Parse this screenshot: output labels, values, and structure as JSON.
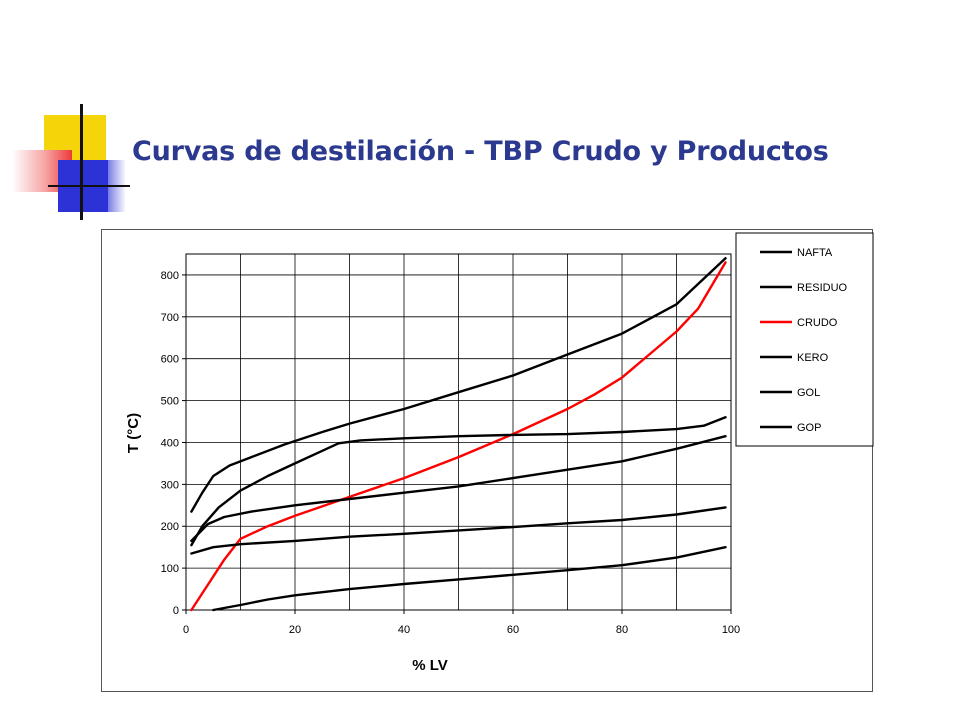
{
  "slide": {
    "title": "Curvas de destilación - TBP Crudo y Productos"
  },
  "chart_data": {
    "type": "line",
    "title": "",
    "xlabel": "% LV",
    "ylabel": "T (°C)",
    "xlim": [
      0,
      100
    ],
    "ylim": [
      0,
      850
    ],
    "x_ticks": [
      0,
      20,
      40,
      60,
      80,
      100
    ],
    "y_ticks": [
      0,
      100,
      200,
      300,
      400,
      500,
      600,
      700,
      800
    ],
    "grid": true,
    "legend_position": "top-right",
    "series": [
      {
        "name": "NAFTA",
        "color": "#000000",
        "points": [
          [
            5,
            0
          ],
          [
            10,
            12
          ],
          [
            15,
            25
          ],
          [
            20,
            35
          ],
          [
            30,
            50
          ],
          [
            40,
            62
          ],
          [
            50,
            73
          ],
          [
            60,
            84
          ],
          [
            70,
            95
          ],
          [
            80,
            107
          ],
          [
            90,
            125
          ],
          [
            99,
            150
          ]
        ]
      },
      {
        "name": "RESIDUO",
        "color": "#000000",
        "points": [
          [
            1,
            235
          ],
          [
            3,
            280
          ],
          [
            5,
            320
          ],
          [
            8,
            345
          ],
          [
            12,
            365
          ],
          [
            18,
            395
          ],
          [
            25,
            425
          ],
          [
            30,
            445
          ],
          [
            40,
            480
          ],
          [
            50,
            520
          ],
          [
            60,
            560
          ],
          [
            70,
            610
          ],
          [
            80,
            660
          ],
          [
            90,
            730
          ],
          [
            99,
            840
          ]
        ]
      },
      {
        "name": "CRUDO",
        "color": "#ff0000",
        "points": [
          [
            1,
            0
          ],
          [
            4,
            60
          ],
          [
            7,
            120
          ],
          [
            10,
            170
          ],
          [
            15,
            200
          ],
          [
            20,
            225
          ],
          [
            30,
            270
          ],
          [
            40,
            315
          ],
          [
            50,
            365
          ],
          [
            60,
            420
          ],
          [
            70,
            480
          ],
          [
            75,
            515
          ],
          [
            80,
            555
          ],
          [
            85,
            610
          ],
          [
            90,
            665
          ],
          [
            94,
            720
          ],
          [
            99,
            830
          ]
        ]
      },
      {
        "name": "KERO",
        "color": "#000000",
        "points": [
          [
            1,
            165
          ],
          [
            4,
            205
          ],
          [
            7,
            222
          ],
          [
            12,
            235
          ],
          [
            20,
            250
          ],
          [
            30,
            265
          ],
          [
            40,
            280
          ],
          [
            50,
            295
          ],
          [
            60,
            315
          ],
          [
            70,
            335
          ],
          [
            80,
            355
          ],
          [
            90,
            385
          ],
          [
            99,
            415
          ]
        ]
      },
      {
        "name": "GOL",
        "color": "#000000",
        "points": [
          [
            1,
            135
          ],
          [
            5,
            150
          ],
          [
            10,
            157
          ],
          [
            20,
            165
          ],
          [
            30,
            175
          ],
          [
            40,
            182
          ],
          [
            50,
            190
          ],
          [
            60,
            198
          ],
          [
            70,
            207
          ],
          [
            80,
            215
          ],
          [
            90,
            228
          ],
          [
            99,
            245
          ]
        ]
      },
      {
        "name": "GOP",
        "color": "#000000",
        "points": [
          [
            1,
            155
          ],
          [
            3,
            200
          ],
          [
            6,
            245
          ],
          [
            10,
            285
          ],
          [
            15,
            320
          ],
          [
            20,
            350
          ],
          [
            25,
            380
          ],
          [
            28,
            398
          ],
          [
            32,
            405
          ],
          [
            40,
            410
          ],
          [
            50,
            415
          ],
          [
            60,
            418
          ],
          [
            70,
            420
          ],
          [
            80,
            425
          ],
          [
            90,
            432
          ],
          [
            95,
            440
          ],
          [
            99,
            460
          ]
        ]
      }
    ]
  }
}
